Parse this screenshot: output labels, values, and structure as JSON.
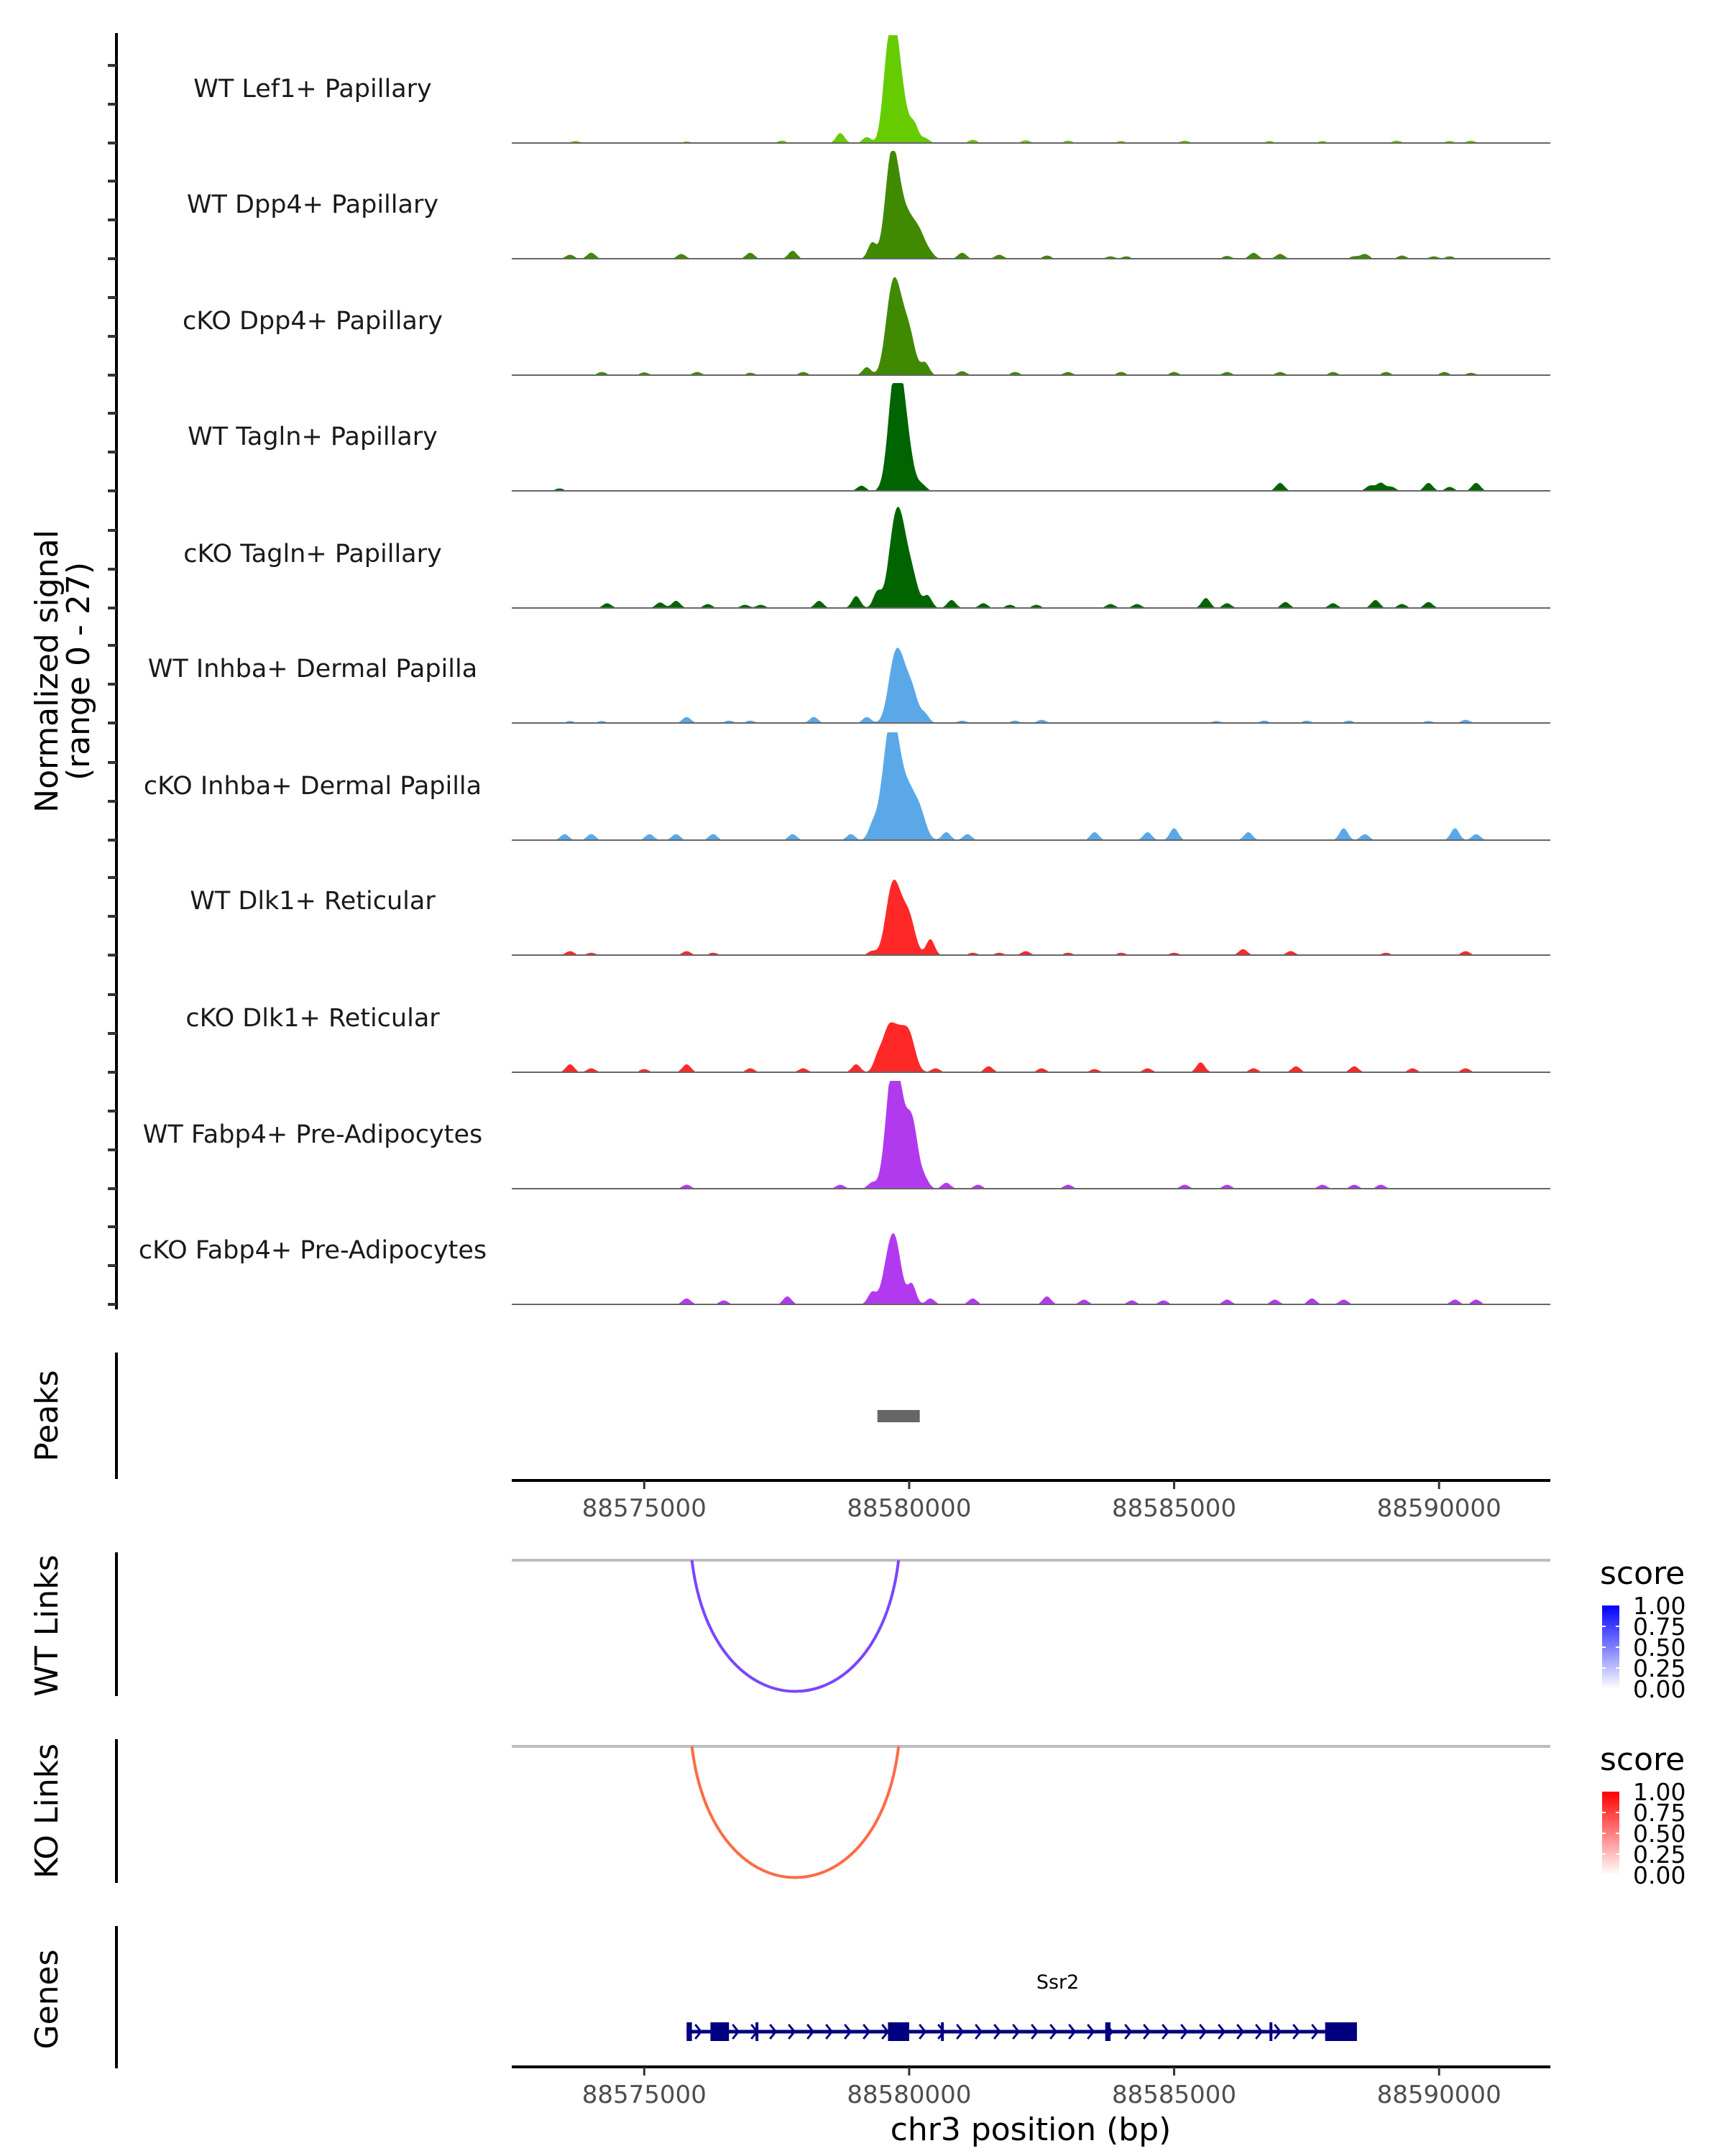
{
  "chart_data": {
    "type": "area",
    "title": "",
    "genome": {
      "chromosome": "chr3",
      "xlim": [
        88572500,
        88592100
      ],
      "xticks": [
        88575000,
        88580000,
        88585000,
        88590000
      ],
      "xtick_labels": [
        "88575000",
        "88580000",
        "88585000",
        "88590000"
      ],
      "xlabel": "chr3 position (bp)"
    },
    "coverage": {
      "ylabel_line1": "Normalized signal",
      "ylabel_line2": "(range 0 - 27)",
      "ylim": [
        0,
        27
      ],
      "tracks": [
        {
          "name": "WT Lef1+ Papillary",
          "color": "#66CC00",
          "peaks": [
            [
              88573700,
              0.5
            ],
            [
              88575800,
              0.4
            ],
            [
              88577600,
              0.6
            ],
            [
              88578700,
              2.5
            ],
            [
              88579200,
              1.5
            ],
            [
              88579550,
              5
            ],
            [
              88579650,
              18
            ],
            [
              88579750,
              15
            ],
            [
              88579900,
              6
            ],
            [
              88580100,
              4
            ],
            [
              88580300,
              1.2
            ],
            [
              88581200,
              0.8
            ],
            [
              88582200,
              0.7
            ],
            [
              88583000,
              0.6
            ],
            [
              88584000,
              0.5
            ],
            [
              88585200,
              0.6
            ],
            [
              88586800,
              0.5
            ],
            [
              88587800,
              0.5
            ],
            [
              88589200,
              0.6
            ],
            [
              88590200,
              0.5
            ],
            [
              88590600,
              0.6
            ]
          ]
        },
        {
          "name": "WT Dpp4+ Papillary",
          "color": "#3F8A00",
          "peaks": [
            [
              88573600,
              1
            ],
            [
              88574000,
              1.5
            ],
            [
              88575700,
              1.2
            ],
            [
              88577000,
              1.5
            ],
            [
              88577800,
              2
            ],
            [
              88579300,
              4
            ],
            [
              88579650,
              22
            ],
            [
              88579800,
              12
            ],
            [
              88580000,
              8
            ],
            [
              88580200,
              6
            ],
            [
              88580400,
              1
            ],
            [
              88581000,
              1.5
            ],
            [
              88581700,
              1
            ],
            [
              88582600,
              0.8
            ],
            [
              88583800,
              0.6
            ],
            [
              88584100,
              0.6
            ],
            [
              88586000,
              0.7
            ],
            [
              88586500,
              1.5
            ],
            [
              88587000,
              1.2
            ],
            [
              88588400,
              0.6
            ],
            [
              88588600,
              1.2
            ],
            [
              88589300,
              0.8
            ],
            [
              88589900,
              0.6
            ],
            [
              88590200,
              0.6
            ]
          ]
        },
        {
          "name": "cKO Dpp4+ Papillary",
          "color": "#3F8A00",
          "peaks": [
            [
              88574200,
              0.8
            ],
            [
              88575000,
              0.7
            ],
            [
              88576000,
              0.8
            ],
            [
              88577000,
              0.6
            ],
            [
              88578000,
              0.8
            ],
            [
              88579200,
              2
            ],
            [
              88579650,
              16
            ],
            [
              88579800,
              14
            ],
            [
              88580000,
              10
            ],
            [
              88580300,
              3
            ],
            [
              88581000,
              1
            ],
            [
              88582000,
              0.8
            ],
            [
              88583000,
              0.8
            ],
            [
              88584000,
              0.8
            ],
            [
              88585000,
              0.8
            ],
            [
              88586000,
              0.8
            ],
            [
              88587000,
              0.8
            ],
            [
              88588000,
              0.8
            ],
            [
              88589000,
              0.8
            ],
            [
              88590100,
              0.8
            ],
            [
              88590600,
              0.6
            ]
          ]
        },
        {
          "name": "WT Tagln+ Papillary",
          "color": "#006400",
          "peaks": [
            [
              88573400,
              0.6
            ],
            [
              88579100,
              1.3
            ],
            [
              88579700,
              22
            ],
            [
              88579850,
              19
            ],
            [
              88580000,
              6
            ],
            [
              88580250,
              1.3
            ],
            [
              88587000,
              2
            ],
            [
              88588700,
              1.3
            ],
            [
              88588900,
              2
            ],
            [
              88589100,
              1
            ],
            [
              88589800,
              2
            ],
            [
              88590200,
              1
            ],
            [
              88590700,
              2
            ]
          ]
        },
        {
          "name": "cKO Tagln+ Papillary",
          "color": "#006400",
          "peaks": [
            [
              88574300,
              1.2
            ],
            [
              88575300,
              1.4
            ],
            [
              88575600,
              1.8
            ],
            [
              88576200,
              1
            ],
            [
              88576900,
              0.8
            ],
            [
              88577200,
              0.8
            ],
            [
              88578300,
              1.8
            ],
            [
              88579000,
              3
            ],
            [
              88579400,
              4
            ],
            [
              88579700,
              15
            ],
            [
              88579850,
              16
            ],
            [
              88580050,
              8
            ],
            [
              88580350,
              3
            ],
            [
              88580800,
              2
            ],
            [
              88581400,
              1.2
            ],
            [
              88581900,
              0.8
            ],
            [
              88582400,
              0.8
            ],
            [
              88583800,
              1
            ],
            [
              88584300,
              1
            ],
            [
              88585600,
              2.5
            ],
            [
              88586000,
              1.2
            ],
            [
              88587100,
              1.5
            ],
            [
              88588000,
              1.2
            ],
            [
              88588800,
              2
            ],
            [
              88589300,
              1
            ],
            [
              88589800,
              1.5
            ]
          ]
        },
        {
          "name": "WT Inhba+ Dermal Papilla",
          "color": "#5BA8E8",
          "peaks": [
            [
              88573600,
              0.5
            ],
            [
              88574200,
              0.5
            ],
            [
              88575800,
              1.5
            ],
            [
              88576600,
              0.6
            ],
            [
              88577000,
              0.6
            ],
            [
              88578200,
              1.5
            ],
            [
              88579200,
              1.5
            ],
            [
              88579700,
              12
            ],
            [
              88579850,
              11
            ],
            [
              88580050,
              8
            ],
            [
              88580300,
              2
            ],
            [
              88581000,
              0.6
            ],
            [
              88582000,
              0.6
            ],
            [
              88582500,
              0.8
            ],
            [
              88585800,
              0.5
            ],
            [
              88586700,
              0.6
            ],
            [
              88587500,
              0.6
            ],
            [
              88588300,
              0.6
            ],
            [
              88589800,
              0.5
            ],
            [
              88590500,
              0.8
            ]
          ]
        },
        {
          "name": "cKO Inhba+ Dermal Papilla",
          "color": "#5BA8E8",
          "peaks": [
            [
              88573500,
              1.5
            ],
            [
              88574000,
              1.5
            ],
            [
              88575100,
              1.5
            ],
            [
              88575600,
              1.5
            ],
            [
              88576300,
              1.5
            ],
            [
              88577800,
              1.5
            ],
            [
              88578900,
              1.5
            ],
            [
              88579300,
              3
            ],
            [
              88579500,
              8
            ],
            [
              88579650,
              22
            ],
            [
              88579800,
              14
            ],
            [
              88580000,
              10
            ],
            [
              88580200,
              7
            ],
            [
              88580700,
              2
            ],
            [
              88581100,
              1.5
            ],
            [
              88583500,
              2
            ],
            [
              88584500,
              2
            ],
            [
              88585000,
              3
            ],
            [
              88586400,
              2
            ],
            [
              88588200,
              3
            ],
            [
              88588600,
              1.5
            ],
            [
              88590300,
              3
            ],
            [
              88590700,
              1.5
            ]
          ]
        },
        {
          "name": "WT Dlk1+ Reticular",
          "color": "#FF2828",
          "peaks": [
            [
              88573600,
              1
            ],
            [
              88574000,
              0.6
            ],
            [
              88575800,
              1
            ],
            [
              88576300,
              0.6
            ],
            [
              88579300,
              1
            ],
            [
              88579650,
              13
            ],
            [
              88579800,
              10
            ],
            [
              88580000,
              9
            ],
            [
              88580400,
              4
            ],
            [
              88581200,
              0.6
            ],
            [
              88581700,
              0.6
            ],
            [
              88582200,
              1
            ],
            [
              88583000,
              0.6
            ],
            [
              88584000,
              0.6
            ],
            [
              88585000,
              0.6
            ],
            [
              88586300,
              1.5
            ],
            [
              88587200,
              1
            ],
            [
              88589000,
              0.6
            ],
            [
              88590500,
              1
            ]
          ]
        },
        {
          "name": "cKO Dlk1+ Reticular",
          "color": "#FF2828",
          "peaks": [
            [
              88573600,
              2
            ],
            [
              88574000,
              1
            ],
            [
              88575000,
              0.8
            ],
            [
              88575800,
              2
            ],
            [
              88577000,
              1
            ],
            [
              88578000,
              1
            ],
            [
              88579000,
              2
            ],
            [
              88579400,
              3
            ],
            [
              88579600,
              10
            ],
            [
              88579800,
              8
            ],
            [
              88580000,
              9
            ],
            [
              88580500,
              1
            ],
            [
              88581500,
              1.5
            ],
            [
              88582500,
              1
            ],
            [
              88583500,
              0.8
            ],
            [
              88584500,
              1
            ],
            [
              88585500,
              2.5
            ],
            [
              88586500,
              1
            ],
            [
              88587300,
              1.5
            ],
            [
              88588400,
              1.5
            ],
            [
              88589500,
              1
            ],
            [
              88590500,
              1
            ]
          ]
        },
        {
          "name": "WT Fabp4+ Pre-Adipocytes",
          "color": "#B23AEE",
          "peaks": [
            [
              88575800,
              1
            ],
            [
              88578700,
              1
            ],
            [
              88579300,
              1.5
            ],
            [
              88579650,
              22
            ],
            [
              88579800,
              20
            ],
            [
              88580050,
              17
            ],
            [
              88580300,
              2
            ],
            [
              88580700,
              1.5
            ],
            [
              88581300,
              1
            ],
            [
              88583000,
              1
            ],
            [
              88585200,
              1
            ],
            [
              88586000,
              1
            ],
            [
              88587800,
              1
            ],
            [
              88588400,
              1
            ],
            [
              88588900,
              1
            ]
          ]
        },
        {
          "name": "cKO Fabp4+ Pre-Adipocytes",
          "color": "#B23AEE",
          "peaks": [
            [
              88575800,
              1.5
            ],
            [
              88576500,
              1
            ],
            [
              88577700,
              2
            ],
            [
              88579300,
              3
            ],
            [
              88579600,
              9
            ],
            [
              88579750,
              13
            ],
            [
              88580050,
              5
            ],
            [
              88580400,
              1.5
            ],
            [
              88581200,
              1.5
            ],
            [
              88582600,
              2
            ],
            [
              88583300,
              1.2
            ],
            [
              88584200,
              1
            ],
            [
              88584800,
              1
            ],
            [
              88586000,
              1.2
            ],
            [
              88586900,
              1.2
            ],
            [
              88587600,
              1.5
            ],
            [
              88588200,
              1.2
            ],
            [
              88590300,
              1.2
            ],
            [
              88590700,
              1.2
            ]
          ]
        }
      ]
    },
    "peaks_track": {
      "label": "Peaks",
      "color": "#666666",
      "regions": [
        [
          88579400,
          88580200
        ]
      ]
    },
    "links": [
      {
        "label": "WT Links",
        "color": "#7B45FF",
        "links": [
          {
            "start": 88575900,
            "end": 88579800,
            "score": 0.72
          }
        ],
        "legend": {
          "title": "score",
          "low": "#FFFFFF",
          "high": "#0000FF",
          "ticks": [
            "1.00",
            "0.75",
            "0.50",
            "0.25",
            "0.00"
          ]
        }
      },
      {
        "label": "KO Links",
        "color": "#FF6B45",
        "links": [
          {
            "start": 88575900,
            "end": 88579800,
            "score": 0.72
          }
        ],
        "legend": {
          "title": "score",
          "low": "#FFFFFF",
          "high": "#FF0000",
          "ticks": [
            "1.00",
            "0.75",
            "0.50",
            "0.25",
            "0.00"
          ]
        }
      }
    ],
    "genes_track": {
      "label": "Genes",
      "color": "#000080",
      "genes": [
        {
          "name": "Ssr2",
          "strand": "+",
          "start": 88575800,
          "end": 88588450,
          "exons": [
            [
              88575800,
              88575900
            ],
            [
              88576250,
              88576600
            ],
            [
              88577100,
              88577150
            ],
            [
              88579600,
              88580000
            ],
            [
              88580600,
              88580650
            ],
            [
              88583700,
              88583800
            ],
            [
              88586800,
              88586850
            ],
            [
              88587850,
              88588450
            ]
          ]
        }
      ]
    }
  }
}
